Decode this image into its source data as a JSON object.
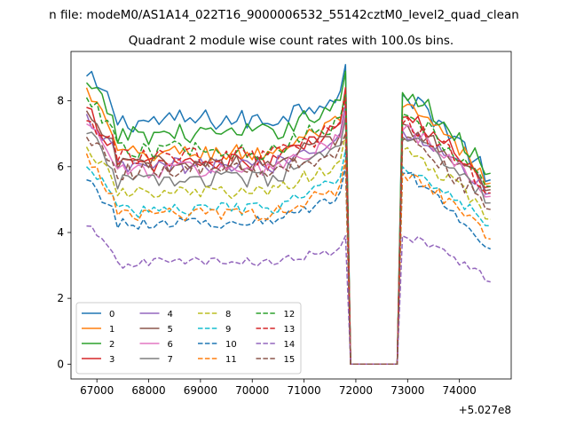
{
  "suptitle": "n file: modeM0/AS1A14_022T16_9000006532_55142cztM0_level2_quad_clean",
  "chart_data": {
    "type": "line",
    "title": "Quadrant 2 module wise count rates with 100.0s bins.",
    "xlabel": "",
    "ylabel": "",
    "x_offset_label": "+5.027e8",
    "xlim": [
      66500,
      75000
    ],
    "ylim": [
      -0.45,
      9.5
    ],
    "xticks": [
      67000,
      68000,
      69000,
      70000,
      71000,
      72000,
      73000,
      74000
    ],
    "xtick_labels": [
      "67000",
      "68000",
      "69000",
      "70000",
      "71000",
      "72000",
      "73000",
      "74000"
    ],
    "yticks": [
      0,
      2,
      4,
      6,
      8
    ],
    "ytick_labels": [
      "0",
      "2",
      "4",
      "6",
      "8"
    ],
    "grid": false,
    "legend_position": "lower-left",
    "legend_columns": 4,
    "x_segments": [
      {
        "start": 66800,
        "end": 71800,
        "step": 100
      },
      {
        "start": 71900,
        "end": 72800,
        "step": 100
      },
      {
        "start": 72900,
        "end": 74600,
        "step": 100
      }
    ],
    "series": [
      {
        "name": "0",
        "color": "#1f77b4",
        "dash": "solid",
        "level": 7.3,
        "start": 8.75,
        "peak": 9.1,
        "re": 8.2,
        "end": 5.6
      },
      {
        "name": "1",
        "color": "#ff7f0e",
        "dash": "solid",
        "level": 6.3,
        "start": 8.4,
        "peak": 8.3,
        "re": 7.8,
        "end": 5.5
      },
      {
        "name": "2",
        "color": "#2ca02c",
        "dash": "solid",
        "level": 6.9,
        "start": 8.55,
        "peak": 8.9,
        "re": 8.25,
        "end": 5.8
      },
      {
        "name": "3",
        "color": "#d62728",
        "dash": "solid",
        "level": 6.0,
        "start": 7.8,
        "peak": 8.4,
        "re": 7.5,
        "end": 5.4
      },
      {
        "name": "4",
        "color": "#9467bd",
        "dash": "solid",
        "level": 5.9,
        "start": 7.6,
        "peak": 7.9,
        "re": 7.1,
        "end": 5.2
      },
      {
        "name": "5",
        "color": "#8c564b",
        "dash": "solid",
        "level": 6.0,
        "start": 7.7,
        "peak": 7.7,
        "re": 7.3,
        "end": 5.3
      },
      {
        "name": "6",
        "color": "#e377c2",
        "dash": "solid",
        "level": 5.8,
        "start": 7.3,
        "peak": 7.7,
        "re": 7.1,
        "end": 5.1
      },
      {
        "name": "7",
        "color": "#7f7f7f",
        "dash": "solid",
        "level": 5.5,
        "start": 7.0,
        "peak": 7.5,
        "re": 6.9,
        "end": 4.9
      },
      {
        "name": "8",
        "color": "#bcbd22",
        "dash": "dashed",
        "level": 5.1,
        "start": 6.6,
        "peak": 7.0,
        "re": 6.5,
        "end": 4.4
      },
      {
        "name": "9",
        "color": "#17becf",
        "dash": "dashed",
        "level": 4.6,
        "start": 6.0,
        "peak": 6.5,
        "re": 6.0,
        "end": 4.2
      },
      {
        "name": "10",
        "color": "#1f77b4",
        "dash": "dashed",
        "level": 4.2,
        "start": 5.6,
        "peak": 6.0,
        "re": 5.8,
        "end": 3.5
      },
      {
        "name": "11",
        "color": "#ff7f0e",
        "dash": "dashed",
        "level": 4.45,
        "start": 6.4,
        "peak": 6.2,
        "re": 5.8,
        "end": 3.8
      },
      {
        "name": "12",
        "color": "#2ca02c",
        "dash": "dashed",
        "level": 6.4,
        "start": 8.1,
        "peak": 8.2,
        "re": 7.6,
        "end": 5.4
      },
      {
        "name": "13",
        "color": "#d62728",
        "dash": "dashed",
        "level": 6.2,
        "start": 7.4,
        "peak": 8.1,
        "re": 7.3,
        "end": 5.2
      },
      {
        "name": "14",
        "color": "#9467bd",
        "dash": "dashed",
        "level": 3.0,
        "start": 4.2,
        "peak": 3.9,
        "re": 3.9,
        "end": 2.5
      },
      {
        "name": "15",
        "color": "#8c564b",
        "dash": "dashed",
        "level": 5.8,
        "start": 6.9,
        "peak": 7.0,
        "re": 6.8,
        "end": 4.7
      }
    ]
  }
}
